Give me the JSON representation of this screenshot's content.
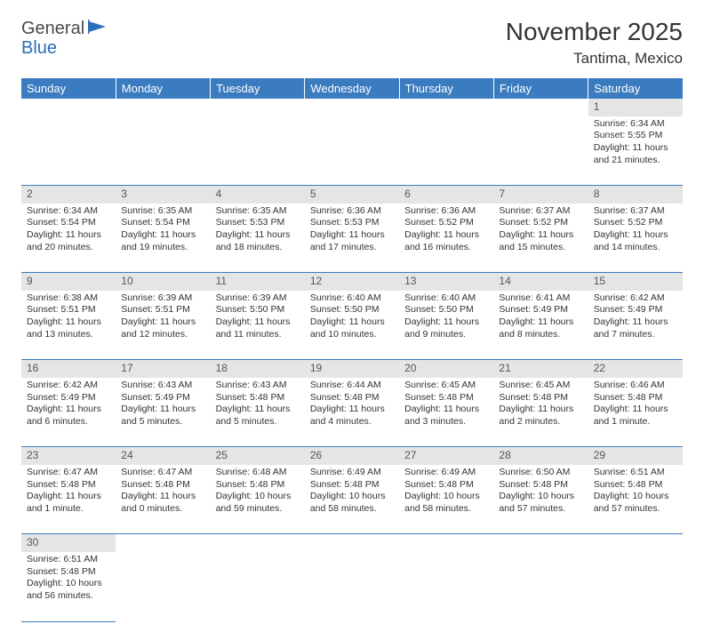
{
  "logo": {
    "line1": "General",
    "line2": "Blue"
  },
  "title": "November 2025",
  "subtitle": "Tantima, Mexico",
  "colors": {
    "header_bg": "#3b7bbf",
    "header_fg": "#ffffff",
    "daynum_bg": "#e5e5e5",
    "row_border": "#3b7bbf",
    "text": "#333333"
  },
  "weekdays": [
    "Sunday",
    "Monday",
    "Tuesday",
    "Wednesday",
    "Thursday",
    "Friday",
    "Saturday"
  ],
  "weeks": [
    [
      null,
      null,
      null,
      null,
      null,
      null,
      {
        "n": "1",
        "sr": "Sunrise: 6:34 AM",
        "ss": "Sunset: 5:55 PM",
        "dl": "Daylight: 11 hours and 21 minutes."
      }
    ],
    [
      {
        "n": "2",
        "sr": "Sunrise: 6:34 AM",
        "ss": "Sunset: 5:54 PM",
        "dl": "Daylight: 11 hours and 20 minutes."
      },
      {
        "n": "3",
        "sr": "Sunrise: 6:35 AM",
        "ss": "Sunset: 5:54 PM",
        "dl": "Daylight: 11 hours and 19 minutes."
      },
      {
        "n": "4",
        "sr": "Sunrise: 6:35 AM",
        "ss": "Sunset: 5:53 PM",
        "dl": "Daylight: 11 hours and 18 minutes."
      },
      {
        "n": "5",
        "sr": "Sunrise: 6:36 AM",
        "ss": "Sunset: 5:53 PM",
        "dl": "Daylight: 11 hours and 17 minutes."
      },
      {
        "n": "6",
        "sr": "Sunrise: 6:36 AM",
        "ss": "Sunset: 5:52 PM",
        "dl": "Daylight: 11 hours and 16 minutes."
      },
      {
        "n": "7",
        "sr": "Sunrise: 6:37 AM",
        "ss": "Sunset: 5:52 PM",
        "dl": "Daylight: 11 hours and 15 minutes."
      },
      {
        "n": "8",
        "sr": "Sunrise: 6:37 AM",
        "ss": "Sunset: 5:52 PM",
        "dl": "Daylight: 11 hours and 14 minutes."
      }
    ],
    [
      {
        "n": "9",
        "sr": "Sunrise: 6:38 AM",
        "ss": "Sunset: 5:51 PM",
        "dl": "Daylight: 11 hours and 13 minutes."
      },
      {
        "n": "10",
        "sr": "Sunrise: 6:39 AM",
        "ss": "Sunset: 5:51 PM",
        "dl": "Daylight: 11 hours and 12 minutes."
      },
      {
        "n": "11",
        "sr": "Sunrise: 6:39 AM",
        "ss": "Sunset: 5:50 PM",
        "dl": "Daylight: 11 hours and 11 minutes."
      },
      {
        "n": "12",
        "sr": "Sunrise: 6:40 AM",
        "ss": "Sunset: 5:50 PM",
        "dl": "Daylight: 11 hours and 10 minutes."
      },
      {
        "n": "13",
        "sr": "Sunrise: 6:40 AM",
        "ss": "Sunset: 5:50 PM",
        "dl": "Daylight: 11 hours and 9 minutes."
      },
      {
        "n": "14",
        "sr": "Sunrise: 6:41 AM",
        "ss": "Sunset: 5:49 PM",
        "dl": "Daylight: 11 hours and 8 minutes."
      },
      {
        "n": "15",
        "sr": "Sunrise: 6:42 AM",
        "ss": "Sunset: 5:49 PM",
        "dl": "Daylight: 11 hours and 7 minutes."
      }
    ],
    [
      {
        "n": "16",
        "sr": "Sunrise: 6:42 AM",
        "ss": "Sunset: 5:49 PM",
        "dl": "Daylight: 11 hours and 6 minutes."
      },
      {
        "n": "17",
        "sr": "Sunrise: 6:43 AM",
        "ss": "Sunset: 5:49 PM",
        "dl": "Daylight: 11 hours and 5 minutes."
      },
      {
        "n": "18",
        "sr": "Sunrise: 6:43 AM",
        "ss": "Sunset: 5:48 PM",
        "dl": "Daylight: 11 hours and 5 minutes."
      },
      {
        "n": "19",
        "sr": "Sunrise: 6:44 AM",
        "ss": "Sunset: 5:48 PM",
        "dl": "Daylight: 11 hours and 4 minutes."
      },
      {
        "n": "20",
        "sr": "Sunrise: 6:45 AM",
        "ss": "Sunset: 5:48 PM",
        "dl": "Daylight: 11 hours and 3 minutes."
      },
      {
        "n": "21",
        "sr": "Sunrise: 6:45 AM",
        "ss": "Sunset: 5:48 PM",
        "dl": "Daylight: 11 hours and 2 minutes."
      },
      {
        "n": "22",
        "sr": "Sunrise: 6:46 AM",
        "ss": "Sunset: 5:48 PM",
        "dl": "Daylight: 11 hours and 1 minute."
      }
    ],
    [
      {
        "n": "23",
        "sr": "Sunrise: 6:47 AM",
        "ss": "Sunset: 5:48 PM",
        "dl": "Daylight: 11 hours and 1 minute."
      },
      {
        "n": "24",
        "sr": "Sunrise: 6:47 AM",
        "ss": "Sunset: 5:48 PM",
        "dl": "Daylight: 11 hours and 0 minutes."
      },
      {
        "n": "25",
        "sr": "Sunrise: 6:48 AM",
        "ss": "Sunset: 5:48 PM",
        "dl": "Daylight: 10 hours and 59 minutes."
      },
      {
        "n": "26",
        "sr": "Sunrise: 6:49 AM",
        "ss": "Sunset: 5:48 PM",
        "dl": "Daylight: 10 hours and 58 minutes."
      },
      {
        "n": "27",
        "sr": "Sunrise: 6:49 AM",
        "ss": "Sunset: 5:48 PM",
        "dl": "Daylight: 10 hours and 58 minutes."
      },
      {
        "n": "28",
        "sr": "Sunrise: 6:50 AM",
        "ss": "Sunset: 5:48 PM",
        "dl": "Daylight: 10 hours and 57 minutes."
      },
      {
        "n": "29",
        "sr": "Sunrise: 6:51 AM",
        "ss": "Sunset: 5:48 PM",
        "dl": "Daylight: 10 hours and 57 minutes."
      }
    ],
    [
      {
        "n": "30",
        "sr": "Sunrise: 6:51 AM",
        "ss": "Sunset: 5:48 PM",
        "dl": "Daylight: 10 hours and 56 minutes."
      },
      null,
      null,
      null,
      null,
      null,
      null
    ]
  ]
}
